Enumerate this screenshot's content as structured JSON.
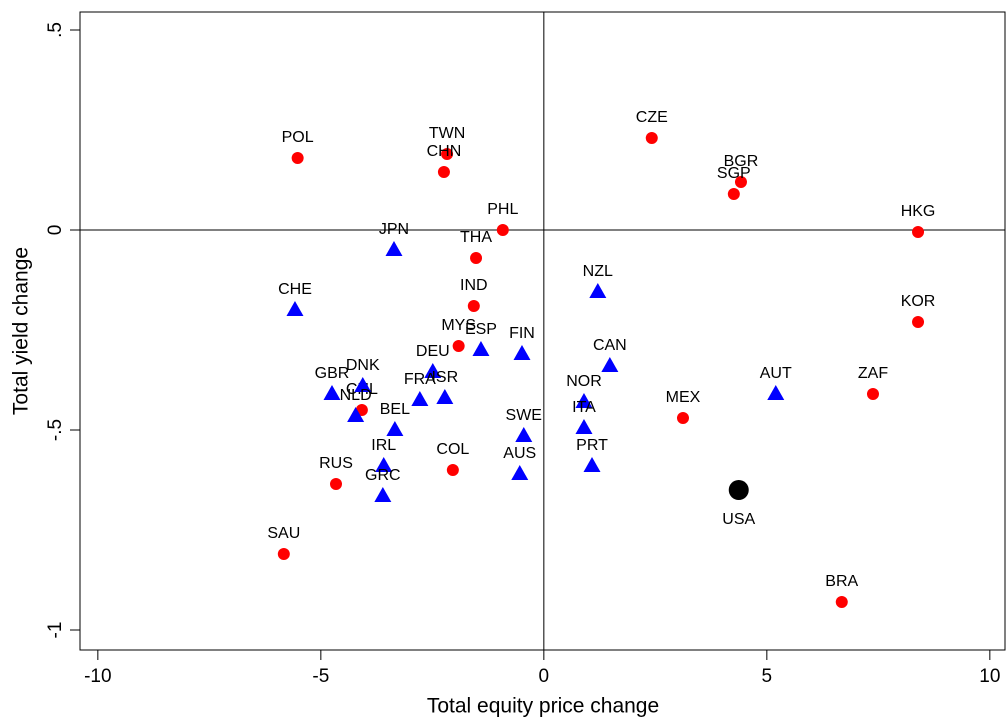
{
  "chart_data": {
    "type": "scatter",
    "xlabel": "Total equity price change",
    "ylabel": "Total yield change",
    "xlim": [
      -10.4,
      10.34
    ],
    "ylim": [
      -1.05,
      0.545
    ],
    "xticks": [
      -10,
      -5,
      0,
      5,
      10
    ],
    "yticks": [
      {
        "value": -1,
        "label": "-1"
      },
      {
        "value": -0.5,
        "label": "-.5"
      },
      0,
      {
        "value": 0.5,
        "label": ".5"
      }
    ],
    "xline": 0,
    "yline": 0,
    "series": [
      {
        "color": "#ff0000",
        "marker": "circle",
        "label_position": "above",
        "labels": [
          "POL",
          "TWN",
          "CHN",
          "CZE",
          "BGR",
          "SGP",
          "PHL",
          "HKG",
          "THA",
          "IND",
          "KOR",
          "MYS",
          "CHL",
          "MEX",
          "ZAF",
          "COL",
          "RUS",
          "SAU",
          "BRA"
        ],
        "x": [
          -5.52,
          -2.17,
          -2.24,
          2.42,
          4.42,
          4.26,
          -0.92,
          8.39,
          -1.52,
          -1.57,
          8.39,
          -1.91,
          -4.08,
          3.12,
          7.38,
          -2.04,
          -4.66,
          -5.83,
          6.68
        ],
        "values": [
          0.18,
          0.19,
          0.145,
          0.23,
          0.12,
          0.09,
          0.0,
          -0.005,
          -0.07,
          -0.19,
          -0.23,
          -0.29,
          -0.45,
          -0.47,
          -0.41,
          -0.6,
          -0.635,
          -0.81,
          -0.93
        ]
      },
      {
        "color": "#0000ff",
        "marker": "triangle",
        "label_position": "above",
        "labels": [
          "JPN",
          "CHE",
          "NZL",
          "ESP",
          "FIN",
          "CAN",
          "DEU",
          "DNK",
          "GBR",
          "FRA",
          "ISR",
          "NLD",
          "AUT",
          "NOR",
          "BEL",
          "ITA",
          "SWE",
          "IRL",
          "PRT",
          "AUS",
          "GRC"
        ],
        "x": [
          -3.36,
          -5.58,
          1.21,
          -1.41,
          -0.49,
          1.48,
          -2.49,
          -4.06,
          -4.75,
          -2.78,
          -2.22,
          -4.22,
          5.2,
          0.9,
          -3.34,
          0.9,
          -0.45,
          -3.59,
          1.08,
          -0.54,
          -3.61
        ],
        "values": [
          -0.05,
          -0.2,
          -0.155,
          -0.3,
          -0.31,
          -0.34,
          -0.355,
          -0.39,
          -0.41,
          -0.425,
          -0.42,
          -0.465,
          -0.41,
          -0.43,
          -0.5,
          -0.495,
          -0.515,
          -0.59,
          -0.59,
          -0.61,
          -0.665
        ]
      },
      {
        "color": "#000000",
        "marker": "big-circle",
        "label_position": "below",
        "labels": [
          "USA"
        ],
        "x": [
          4.37
        ],
        "values": [
          -0.65
        ]
      }
    ]
  }
}
